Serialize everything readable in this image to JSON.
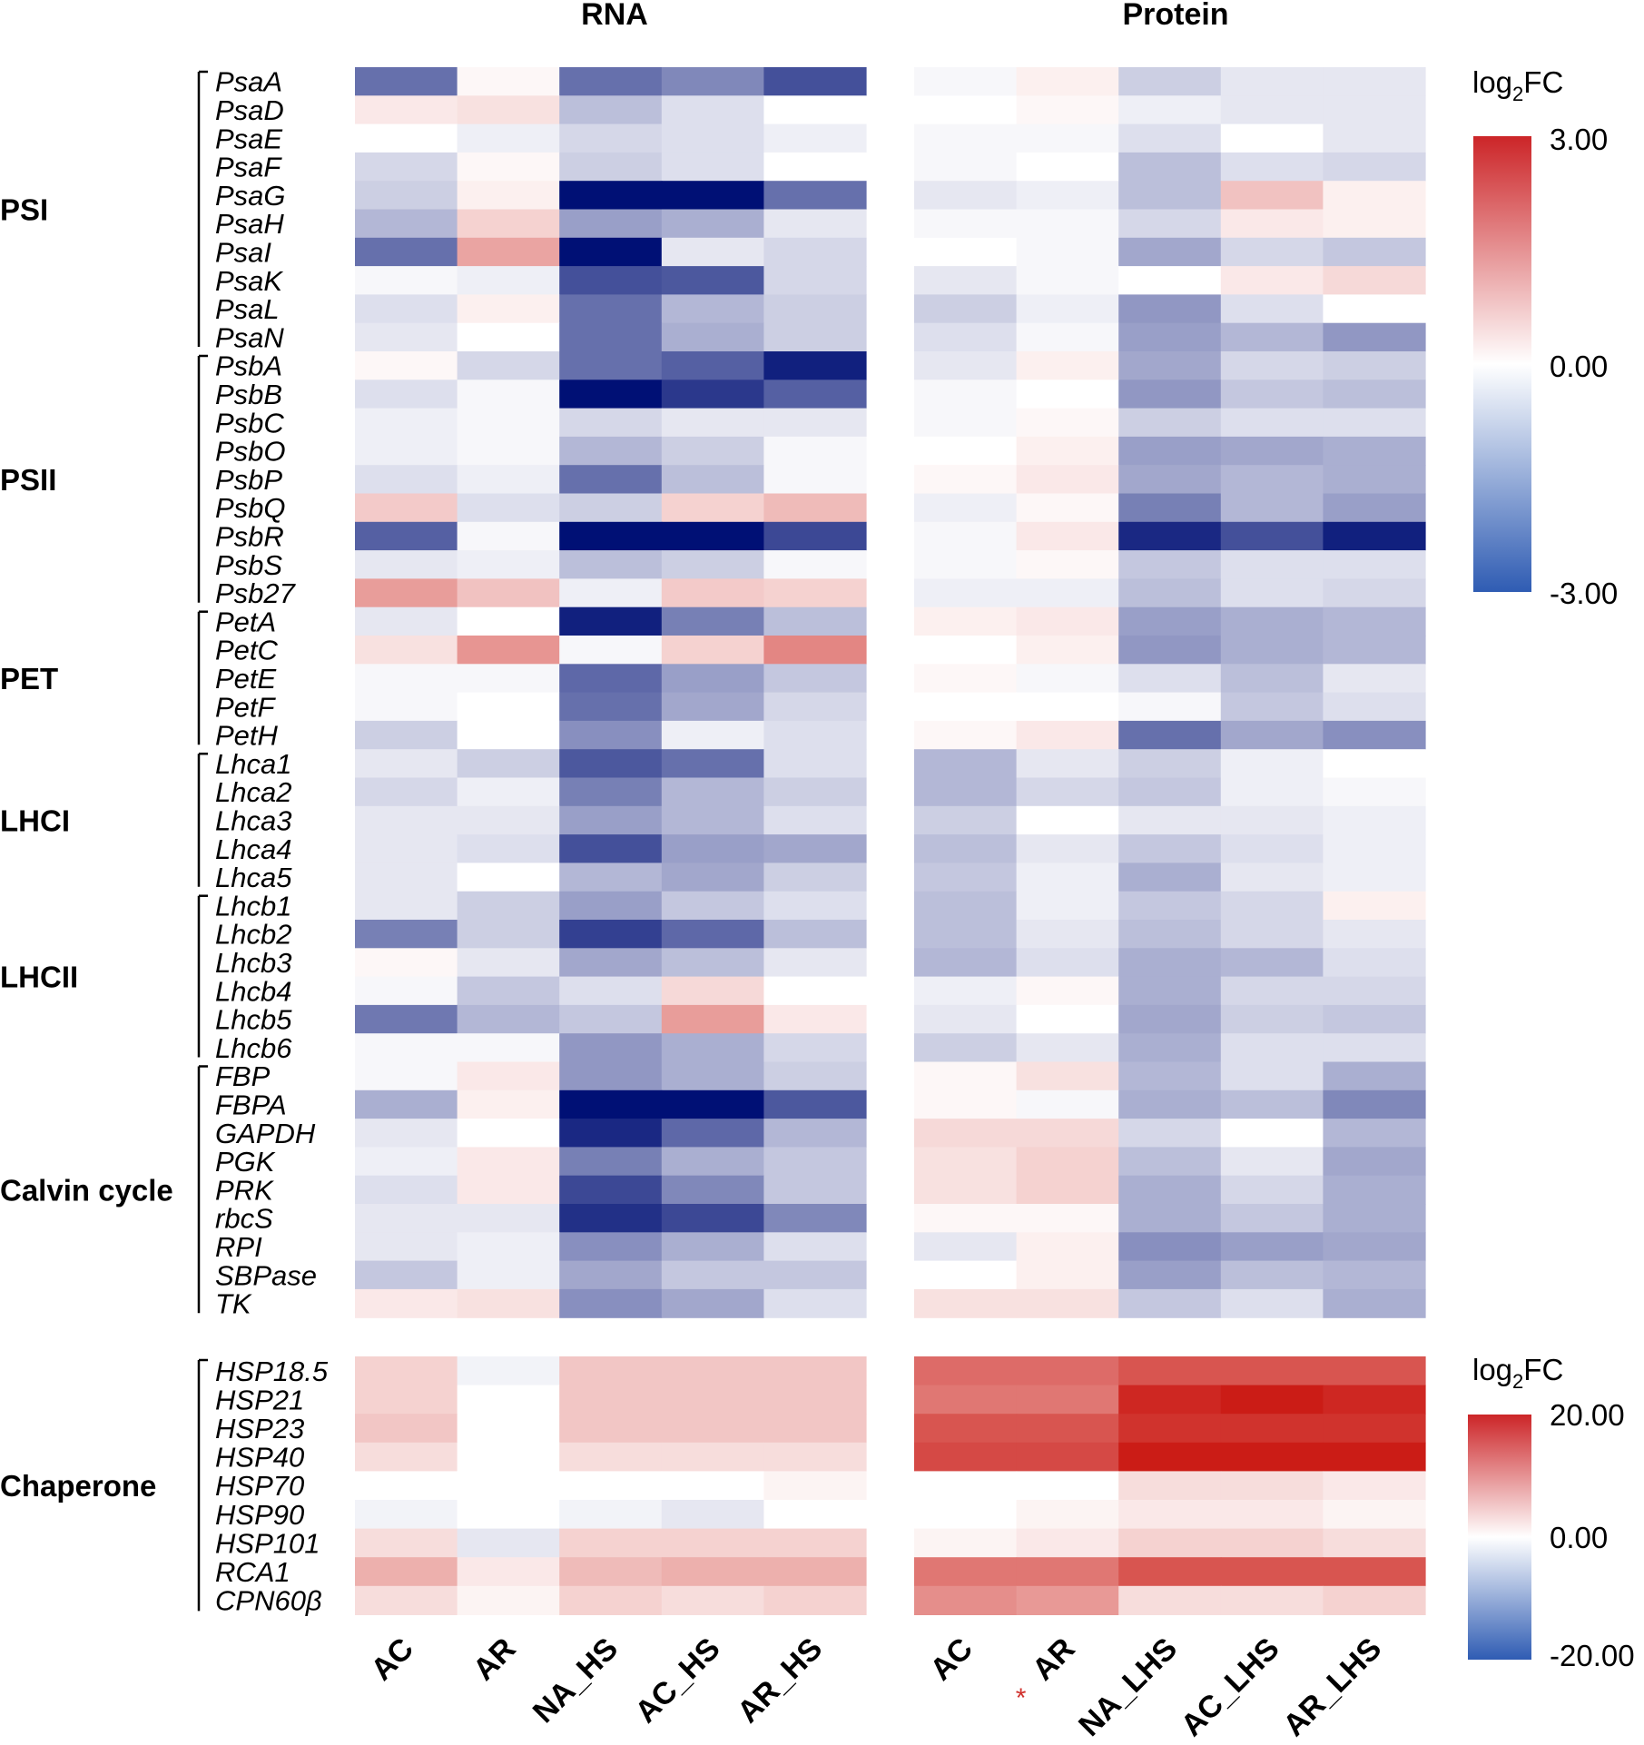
{
  "chart_data": {
    "type": "heatmap",
    "titles": {
      "rna": "RNA",
      "protein": "Protein"
    },
    "rna_columns": [
      "AC",
      "AR",
      "NA_HS",
      "AC_HS",
      "AR_HS"
    ],
    "protein_columns": [
      "AC",
      "AR",
      "NA_LHS",
      "AC_LHS",
      "AR_LHS"
    ],
    "protein_column_markers": {
      "AR": "*"
    },
    "top_panel": {
      "rows": [
        "PsaA",
        "PsaD",
        "PsaE",
        "PsaF",
        "PsaG",
        "PsaH",
        "PsaI",
        "PsaK",
        "PsaL",
        "PsaN",
        "PsbA",
        "PsbB",
        "PsbC",
        "PsbO",
        "PsbP",
        "PsbQ",
        "PsbR",
        "PsbS",
        "Psb27",
        "PetA",
        "PetC",
        "PetE",
        "PetF",
        "PetH",
        "Lhca1",
        "Lhca2",
        "Lhca3",
        "Lhca4",
        "Lhca5",
        "Lhcb1",
        "Lhcb2",
        "Lhcb3",
        "Lhcb4",
        "Lhcb5",
        "Lhcb6",
        "FBP",
        "FBPA",
        "GAPDH",
        "PGK",
        "PRK",
        "rbcS",
        "RPI",
        "SBPase",
        "TK"
      ],
      "groups": [
        {
          "name": "PSI",
          "start": 0,
          "end": 9
        },
        {
          "name": "PSII",
          "start": 10,
          "end": 18
        },
        {
          "name": "PET",
          "start": 19,
          "end": 23
        },
        {
          "name": "LHCI",
          "start": 24,
          "end": 28
        },
        {
          "name": "LHCII",
          "start": 29,
          "end": 34
        },
        {
          "name": "Calvin cycle",
          "start": 35,
          "end": 43
        }
      ],
      "rna_values": [
        [
          -1.8,
          0.1,
          -1.8,
          -1.5,
          -2.2
        ],
        [
          0.3,
          0.4,
          -0.8,
          -0.4,
          0.0
        ],
        [
          0.0,
          -0.2,
          -0.5,
          -0.4,
          -0.2
        ],
        [
          -0.5,
          0.1,
          -0.6,
          -0.4,
          0.0
        ],
        [
          -0.6,
          0.2,
          -3.2,
          -3.0,
          -1.8
        ],
        [
          -0.9,
          0.6,
          -1.2,
          -1.0,
          -0.3
        ],
        [
          -1.8,
          1.2,
          -3.4,
          -0.3,
          -0.5
        ],
        [
          -0.1,
          -0.2,
          -2.2,
          -2.1,
          -0.5
        ],
        [
          -0.4,
          0.2,
          -1.8,
          -0.9,
          -0.6
        ],
        [
          -0.3,
          0.0,
          -1.8,
          -1.0,
          -0.6
        ],
        [
          0.1,
          -0.5,
          -1.8,
          -2.0,
          -2.8
        ],
        [
          -0.4,
          -0.1,
          -3.2,
          -2.5,
          -2.0
        ],
        [
          -0.2,
          -0.1,
          -0.5,
          -0.3,
          -0.3
        ],
        [
          -0.2,
          -0.1,
          -0.9,
          -0.6,
          -0.1
        ],
        [
          -0.4,
          -0.2,
          -1.8,
          -0.8,
          -0.1
        ],
        [
          0.7,
          -0.4,
          -0.6,
          0.6,
          0.9
        ],
        [
          -2.0,
          -0.1,
          -3.5,
          -3.5,
          -2.3
        ],
        [
          -0.3,
          -0.2,
          -0.8,
          -0.6,
          -0.1
        ],
        [
          1.3,
          0.8,
          -0.2,
          0.7,
          0.6
        ],
        [
          -0.3,
          0.0,
          -2.8,
          -1.6,
          -0.8
        ],
        [
          0.4,
          1.4,
          -0.1,
          0.6,
          1.6
        ],
        [
          -0.1,
          -0.1,
          -1.9,
          -1.2,
          -0.7
        ],
        [
          -0.1,
          0.0,
          -1.8,
          -1.1,
          -0.5
        ],
        [
          -0.6,
          0.0,
          -1.4,
          -0.2,
          -0.4
        ],
        [
          -0.3,
          -0.6,
          -2.1,
          -1.8,
          -0.4
        ],
        [
          -0.5,
          -0.2,
          -1.6,
          -0.9,
          -0.6
        ],
        [
          -0.3,
          -0.3,
          -1.2,
          -0.9,
          -0.4
        ],
        [
          -0.3,
          -0.4,
          -2.2,
          -1.2,
          -1.1
        ],
        [
          -0.3,
          0.0,
          -0.9,
          -1.1,
          -0.6
        ],
        [
          -0.3,
          -0.6,
          -1.2,
          -0.7,
          -0.4
        ],
        [
          -1.6,
          -0.6,
          -2.4,
          -1.9,
          -0.8
        ],
        [
          0.1,
          -0.3,
          -1.1,
          -0.8,
          -0.3
        ],
        [
          -0.1,
          -0.7,
          -0.4,
          0.5,
          0.0
        ],
        [
          -1.7,
          -0.9,
          -0.7,
          1.3,
          0.3
        ],
        [
          -0.1,
          -0.1,
          -1.3,
          -1.0,
          -0.5
        ],
        [
          -0.1,
          0.3,
          -1.3,
          -1.0,
          -0.6
        ],
        [
          -1.0,
          0.2,
          -3.5,
          -3.2,
          -2.1
        ],
        [
          -0.3,
          0.0,
          -2.7,
          -1.9,
          -0.9
        ],
        [
          -0.2,
          0.3,
          -1.6,
          -1.0,
          -0.7
        ],
        [
          -0.4,
          0.3,
          -2.3,
          -1.5,
          -0.7
        ],
        [
          -0.3,
          -0.3,
          -2.6,
          -2.3,
          -1.5
        ],
        [
          -0.3,
          -0.2,
          -1.4,
          -1.0,
          -0.4
        ],
        [
          -0.7,
          -0.2,
          -1.1,
          -0.7,
          -0.7
        ],
        [
          0.3,
          0.4,
          -1.4,
          -1.1,
          -0.4
        ]
      ],
      "protein_values": [
        [
          -0.1,
          0.2,
          -0.6,
          -0.3,
          -0.3
        ],
        [
          0.0,
          0.1,
          -0.2,
          -0.3,
          -0.3
        ],
        [
          -0.1,
          -0.1,
          -0.4,
          0.0,
          -0.3
        ],
        [
          -0.1,
          0.0,
          -0.8,
          -0.4,
          -0.5
        ],
        [
          -0.3,
          -0.2,
          -0.8,
          0.8,
          0.2
        ],
        [
          -0.1,
          -0.1,
          -0.5,
          0.3,
          0.2
        ],
        [
          0.0,
          -0.1,
          -1.1,
          -0.5,
          -0.7
        ],
        [
          -0.3,
          -0.1,
          0.0,
          0.3,
          0.5
        ],
        [
          -0.6,
          -0.2,
          -1.3,
          -0.4,
          0.0
        ],
        [
          -0.4,
          -0.1,
          -1.2,
          -0.9,
          -1.3
        ],
        [
          -0.3,
          0.2,
          -1.1,
          -0.5,
          -0.6
        ],
        [
          -0.1,
          0.0,
          -1.3,
          -0.7,
          -0.8
        ],
        [
          -0.1,
          0.1,
          -0.6,
          -0.4,
          -0.4
        ],
        [
          0.0,
          0.2,
          -1.2,
          -1.1,
          -1.0
        ],
        [
          0.1,
          0.3,
          -1.1,
          -0.9,
          -1.0
        ],
        [
          -0.2,
          0.1,
          -1.6,
          -0.9,
          -1.2
        ],
        [
          -0.1,
          0.3,
          -2.7,
          -2.2,
          -2.8
        ],
        [
          -0.1,
          0.1,
          -0.7,
          -0.4,
          -0.4
        ],
        [
          -0.2,
          -0.2,
          -0.8,
          -0.4,
          -0.5
        ],
        [
          0.2,
          0.3,
          -1.2,
          -1.0,
          -0.9
        ],
        [
          0.0,
          0.2,
          -1.3,
          -1.0,
          -0.9
        ],
        [
          0.1,
          -0.1,
          -0.4,
          -0.8,
          -0.3
        ],
        [
          0.0,
          0.0,
          -0.1,
          -0.7,
          -0.4
        ],
        [
          0.1,
          0.3,
          -1.8,
          -1.1,
          -1.4
        ],
        [
          -0.9,
          -0.3,
          -0.6,
          -0.2,
          0.0
        ],
        [
          -0.9,
          -0.5,
          -0.7,
          -0.2,
          -0.1
        ],
        [
          -0.6,
          0.0,
          -0.3,
          -0.3,
          -0.2
        ],
        [
          -0.8,
          -0.3,
          -0.7,
          -0.4,
          -0.2
        ],
        [
          -0.7,
          -0.2,
          -1.0,
          -0.3,
          -0.2
        ],
        [
          -0.8,
          -0.2,
          -0.7,
          -0.5,
          0.2
        ],
        [
          -0.8,
          -0.3,
          -0.8,
          -0.5,
          -0.3
        ],
        [
          -0.9,
          -0.4,
          -1.0,
          -0.9,
          -0.4
        ],
        [
          -0.2,
          0.1,
          -1.0,
          -0.5,
          -0.5
        ],
        [
          -0.3,
          0.0,
          -1.1,
          -0.6,
          -0.7
        ],
        [
          -0.6,
          -0.3,
          -1.0,
          -0.4,
          -0.4
        ],
        [
          0.1,
          0.4,
          -0.9,
          -0.4,
          -1.0
        ],
        [
          0.1,
          -0.1,
          -1.0,
          -0.8,
          -1.5
        ],
        [
          0.5,
          0.5,
          -0.5,
          0.0,
          -0.9
        ],
        [
          0.4,
          0.6,
          -0.8,
          -0.3,
          -1.1
        ],
        [
          0.4,
          0.6,
          -1.0,
          -0.5,
          -1.0
        ],
        [
          0.1,
          0.1,
          -1.0,
          -0.7,
          -1.0
        ],
        [
          -0.3,
          0.2,
          -1.4,
          -1.2,
          -1.1
        ],
        [
          0.0,
          0.2,
          -1.2,
          -0.8,
          -0.9
        ],
        [
          0.4,
          0.4,
          -0.7,
          -0.4,
          -1.0
        ]
      ]
    },
    "bottom_panel": {
      "group": "Chaperone",
      "rows": [
        "HSP18.5",
        "HSP21",
        "HSP23",
        "HSP40",
        "HSP70",
        "HSP90",
        "HSP101",
        "RCA1",
        "CPN60β"
      ],
      "rna_values": [
        [
          4,
          -1,
          5,
          5,
          5
        ],
        [
          4,
          0,
          5,
          5,
          5
        ],
        [
          5,
          0,
          5,
          5,
          5
        ],
        [
          3,
          0,
          3,
          3,
          3
        ],
        [
          0,
          0,
          0,
          0,
          1
        ],
        [
          -1,
          0,
          -1,
          -2,
          0
        ],
        [
          3,
          -2,
          4,
          4,
          4
        ],
        [
          7,
          2,
          6,
          7,
          7
        ],
        [
          3,
          1,
          4,
          3,
          4
        ]
      ],
      "protein_values": [
        [
          13,
          13,
          15,
          15,
          15
        ],
        [
          12,
          12,
          19,
          20,
          19
        ],
        [
          15,
          15,
          18,
          18,
          18
        ],
        [
          16,
          16,
          20,
          20,
          20
        ],
        [
          0,
          0,
          3,
          3,
          2
        ],
        [
          0,
          1,
          2,
          2,
          1
        ],
        [
          1,
          2,
          4,
          4,
          3
        ],
        [
          12,
          12,
          15,
          15,
          15
        ],
        [
          10,
          9,
          3,
          3,
          4
        ]
      ]
    },
    "legends": [
      {
        "label_base": "log",
        "label_sub": "2",
        "label_tail": "FC",
        "max_label": "3.00",
        "mid_label": "0.00",
        "min_label": "-3.00",
        "range": [
          -3,
          3
        ]
      },
      {
        "label_base": "log",
        "label_sub": "2",
        "label_tail": "FC",
        "max_label": "20.00",
        "mid_label": "0.00",
        "min_label": "-20.00",
        "range": [
          -20,
          20
        ]
      }
    ],
    "colors": {
      "high": "#cb1c16",
      "mid": "#ffffff",
      "low": "#001075"
    }
  }
}
